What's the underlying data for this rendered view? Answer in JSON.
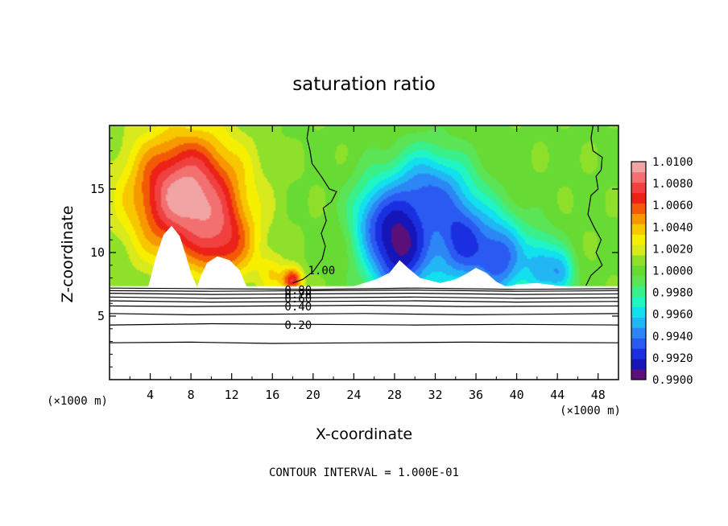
{
  "chart_data": {
    "type": "heatmap",
    "title": "saturation ratio",
    "xlabel": "X-coordinate",
    "ylabel": "Z-coordinate",
    "x_unit": "(×1000 m)",
    "y_unit": "(×1000 m)",
    "footer": "CONTOUR INTERVAL = 1.000E-01",
    "xlim": [
      0,
      50
    ],
    "ylim": [
      0,
      20
    ],
    "x_ticks": [
      4,
      8,
      12,
      16,
      20,
      24,
      28,
      32,
      36,
      40,
      44,
      48
    ],
    "y_ticks": [
      5,
      10,
      15
    ],
    "colorbar": {
      "labels": [
        "1.0100",
        "1.0080",
        "1.0060",
        "1.0040",
        "1.0020",
        "1.0000",
        "0.9980",
        "0.9960",
        "0.9940",
        "0.9920",
        "0.9900"
      ],
      "min": 0.99,
      "max": 1.01,
      "stops": [
        {
          "v": 0.99,
          "c": "#5a0f7a"
        },
        {
          "v": 0.991,
          "c": "#1616b8"
        },
        {
          "v": 0.992,
          "c": "#1a2fe0"
        },
        {
          "v": 0.993,
          "c": "#2a5af2"
        },
        {
          "v": 0.994,
          "c": "#2d86f5"
        },
        {
          "v": 0.995,
          "c": "#22b6f4"
        },
        {
          "v": 0.996,
          "c": "#12e0ee"
        },
        {
          "v": 0.997,
          "c": "#22f5c4"
        },
        {
          "v": 0.998,
          "c": "#39f08a"
        },
        {
          "v": 0.999,
          "c": "#5be455"
        },
        {
          "v": 1.0,
          "c": "#67db34"
        },
        {
          "v": 1.001,
          "c": "#8ee02a"
        },
        {
          "v": 1.002,
          "c": "#d8ea1e"
        },
        {
          "v": 1.003,
          "c": "#f6f000"
        },
        {
          "v": 1.004,
          "c": "#f7c800"
        },
        {
          "v": 1.005,
          "c": "#f79800"
        },
        {
          "v": 1.006,
          "c": "#f25a08"
        },
        {
          "v": 1.007,
          "c": "#ec2118"
        },
        {
          "v": 1.008,
          "c": "#f04040"
        },
        {
          "v": 1.009,
          "c": "#f37070"
        },
        {
          "v": 1.01,
          "c": "#f2a3a3"
        }
      ]
    },
    "surface_z": 7.3,
    "sources": [
      {
        "x": 7.5,
        "z": 14.5,
        "sx": 5.5,
        "sz": 5.0,
        "a": 0.0095
      },
      {
        "x": 11.5,
        "z": 10.5,
        "sx": 3.0,
        "sz": 3.0,
        "a": 0.004
      },
      {
        "x": 16.0,
        "z": 8.3,
        "sx": 1.3,
        "sz": 1.6,
        "a": 0.0025
      },
      {
        "x": 18.0,
        "z": 7.8,
        "sx": 1.0,
        "sz": 1.0,
        "a": 0.007
      },
      {
        "x": 28.5,
        "z": 10.5,
        "sx": 3.2,
        "sz": 4.5,
        "a": -0.0095
      },
      {
        "x": 34.5,
        "z": 11.0,
        "sx": 2.8,
        "sz": 4.0,
        "a": -0.007
      },
      {
        "x": 25.5,
        "z": 13.0,
        "sx": 2.2,
        "sz": 3.0,
        "a": -0.003
      },
      {
        "x": 31.5,
        "z": 15.5,
        "sx": 3.5,
        "sz": 3.0,
        "a": -0.0045
      },
      {
        "x": 38.5,
        "z": 9.5,
        "sx": 2.5,
        "sz": 3.5,
        "a": -0.0065
      },
      {
        "x": 42.5,
        "z": 9.0,
        "sx": 1.8,
        "sz": 2.6,
        "a": -0.0045
      },
      {
        "x": 44.5,
        "z": 8.3,
        "sx": 1.3,
        "sz": 1.8,
        "a": -0.004
      }
    ],
    "blank_regions": [
      [
        [
          3.8,
          7.3
        ],
        [
          4.5,
          9.5
        ],
        [
          5.3,
          11.4
        ],
        [
          6.1,
          12.1
        ],
        [
          6.9,
          11.3
        ],
        [
          7.5,
          9.8
        ],
        [
          8.0,
          8.4
        ],
        [
          8.6,
          7.3
        ]
      ],
      [
        [
          8.6,
          7.3
        ],
        [
          9.0,
          8.2
        ],
        [
          9.6,
          9.2
        ],
        [
          10.6,
          9.7
        ],
        [
          11.8,
          9.4
        ],
        [
          12.8,
          8.6
        ],
        [
          13.3,
          7.6
        ],
        [
          13.5,
          7.3
        ]
      ],
      [
        [
          23.8,
          7.3
        ],
        [
          25.0,
          7.6
        ],
        [
          26.2,
          7.9
        ],
        [
          27.5,
          8.4
        ],
        [
          28.5,
          9.4
        ],
        [
          29.3,
          8.8
        ],
        [
          30.5,
          8.0
        ],
        [
          32.5,
          7.6
        ],
        [
          34.0,
          7.9
        ],
        [
          35.0,
          8.3
        ],
        [
          36.0,
          8.8
        ],
        [
          37.0,
          8.4
        ],
        [
          38.0,
          7.7
        ],
        [
          39.0,
          7.3
        ]
      ],
      [
        [
          39.0,
          7.3
        ],
        [
          40.0,
          7.5
        ],
        [
          42.0,
          7.6
        ],
        [
          44.0,
          7.4
        ],
        [
          45.0,
          7.3
        ]
      ]
    ],
    "contour_lines": [
      {
        "level": "1.00",
        "points": [
          [
            19.6,
            20
          ],
          [
            19.4,
            19
          ],
          [
            19.7,
            18
          ],
          [
            19.9,
            17
          ],
          [
            20.8,
            16
          ],
          [
            21.6,
            15
          ],
          [
            22.3,
            14.8
          ],
          [
            21.8,
            14
          ],
          [
            21.0,
            13.5
          ],
          [
            21.3,
            12.5
          ],
          [
            20.8,
            11.5
          ],
          [
            21.2,
            10.5
          ],
          [
            20.9,
            9.5
          ],
          [
            20.0,
            8.5
          ],
          [
            19.0,
            7.9
          ],
          [
            18.0,
            7.6
          ]
        ],
        "label_at": [
          19.5,
          8.6
        ]
      },
      {
        "level": "1.00",
        "points": [
          [
            47.5,
            20
          ],
          [
            47.3,
            19
          ],
          [
            47.5,
            18
          ],
          [
            48.4,
            17.5
          ],
          [
            48.3,
            16.5
          ],
          [
            47.8,
            16
          ],
          [
            48.0,
            15
          ],
          [
            47.3,
            14.5
          ],
          [
            47.0,
            13
          ],
          [
            47.6,
            12
          ],
          [
            48.3,
            11
          ],
          [
            47.8,
            10
          ],
          [
            48.4,
            9
          ],
          [
            47.3,
            8.2
          ],
          [
            46.8,
            7.4
          ]
        ],
        "label_at": null
      },
      {
        "level": "0.90",
        "points": [
          [
            0,
            7.2
          ],
          [
            10,
            7.15
          ],
          [
            20,
            7.1
          ],
          [
            30,
            7.2
          ],
          [
            40,
            7.1
          ],
          [
            50,
            7.15
          ]
        ],
        "label_at": null
      },
      {
        "level": "0.80",
        "points": [
          [
            0,
            7.0
          ],
          [
            10,
            6.95
          ],
          [
            20,
            7.0
          ],
          [
            30,
            7.05
          ],
          [
            40,
            6.95
          ],
          [
            50,
            7.0
          ]
        ],
        "label_at": [
          17.2,
          7.05
        ]
      },
      {
        "level": "0.70",
        "points": [
          [
            0,
            6.8
          ],
          [
            10,
            6.7
          ],
          [
            20,
            6.75
          ],
          [
            30,
            6.8
          ],
          [
            40,
            6.7
          ],
          [
            50,
            6.75
          ]
        ],
        "label_at": [
          17.2,
          6.72
        ]
      },
      {
        "level": "0.60",
        "points": [
          [
            0,
            6.5
          ],
          [
            10,
            6.4
          ],
          [
            20,
            6.45
          ],
          [
            30,
            6.5
          ],
          [
            40,
            6.4
          ],
          [
            50,
            6.45
          ]
        ],
        "label_at": [
          17.2,
          6.4
        ]
      },
      {
        "level": "0.50",
        "points": [
          [
            0,
            6.2
          ],
          [
            10,
            6.1
          ],
          [
            20,
            6.15
          ],
          [
            30,
            6.2
          ],
          [
            40,
            6.1
          ],
          [
            50,
            6.15
          ]
        ],
        "label_at": null
      },
      {
        "level": "0.40",
        "points": [
          [
            0,
            5.8
          ],
          [
            8,
            5.75
          ],
          [
            16,
            5.8
          ],
          [
            25,
            5.85
          ],
          [
            35,
            5.75
          ],
          [
            50,
            5.8
          ]
        ],
        "label_at": [
          17.2,
          5.75
        ]
      },
      {
        "level": "0.30",
        "points": [
          [
            0,
            5.2
          ],
          [
            8,
            5.1
          ],
          [
            16,
            5.15
          ],
          [
            25,
            5.2
          ],
          [
            35,
            5.1
          ],
          [
            50,
            5.2
          ]
        ],
        "label_at": null
      },
      {
        "level": "0.20",
        "points": [
          [
            0,
            4.3
          ],
          [
            10,
            4.4
          ],
          [
            20,
            4.35
          ],
          [
            30,
            4.3
          ],
          [
            40,
            4.35
          ],
          [
            50,
            4.3
          ]
        ],
        "label_at": [
          17.2,
          4.3
        ]
      },
      {
        "level": "0.10",
        "points": [
          [
            0,
            2.9
          ],
          [
            8,
            2.95
          ],
          [
            16,
            2.85
          ],
          [
            25,
            2.9
          ],
          [
            35,
            2.95
          ],
          [
            50,
            2.9
          ]
        ],
        "label_at": null
      }
    ]
  }
}
